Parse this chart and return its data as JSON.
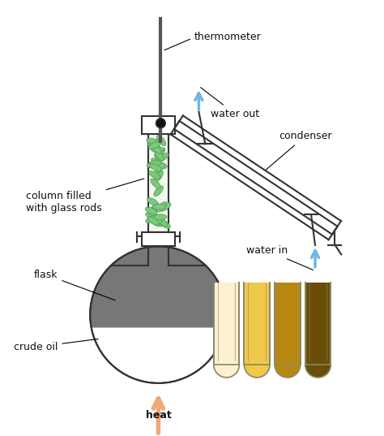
{
  "background_color": "#ffffff",
  "crude_oil_color": "#777777",
  "glass_rod_color": "#7dc87d",
  "glass_rod_edge": "#4a9a4a",
  "heat_arrow_color": "#f0a878",
  "water_arrow_color": "#6eb5e8",
  "label_color": "#111111",
  "line_color": "#333333",
  "tube_colors": [
    "#fdf0d0",
    "#f0c84a",
    "#b8880e",
    "#6a4e08"
  ],
  "tube_border_color": "#888866",
  "labels": {
    "thermometer": "thermometer",
    "water_out": "water out",
    "water_in": "water in",
    "condenser": "condenser",
    "column": "column filled\nwith glass rods",
    "flask": "flask",
    "crude_oil": "crude oil",
    "heat": "heat"
  }
}
